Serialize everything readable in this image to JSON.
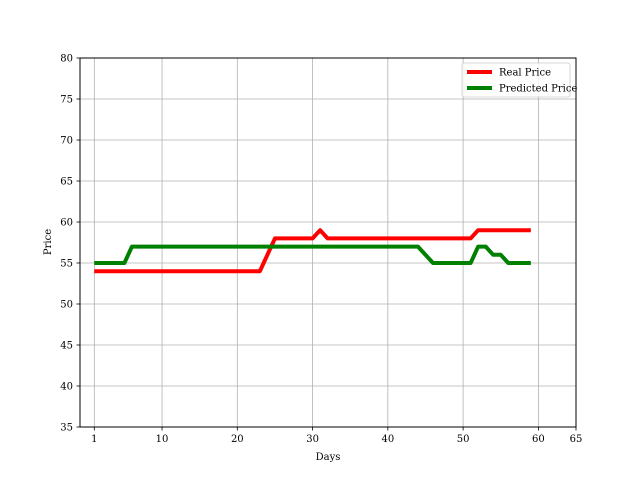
{
  "chart_data": {
    "type": "line",
    "title": "",
    "xlabel": "Days",
    "ylabel": "Price",
    "xlim": [
      -0.9,
      65
    ],
    "ylim": [
      35,
      80
    ],
    "xticks": [
      1,
      10,
      20,
      30,
      40,
      50,
      60,
      65
    ],
    "yticks": [
      35,
      40,
      45,
      50,
      55,
      60,
      65,
      70,
      75,
      80
    ],
    "grid": true,
    "legend_position": "top-right",
    "series": [
      {
        "name": "Real Price",
        "color": "#ff0000",
        "x": [
          1,
          23,
          25,
          30,
          31,
          32,
          51,
          52,
          59
        ],
        "y": [
          54,
          54,
          58,
          58,
          59,
          58,
          58,
          59,
          59
        ]
      },
      {
        "name": "Predicted Price",
        "color": "#008000",
        "x": [
          1,
          5,
          6,
          44,
          46,
          51,
          52,
          53,
          54,
          55,
          56,
          59
        ],
        "y": [
          55,
          55,
          57,
          57,
          55,
          55,
          57,
          57,
          56,
          56,
          55,
          55
        ]
      }
    ]
  }
}
